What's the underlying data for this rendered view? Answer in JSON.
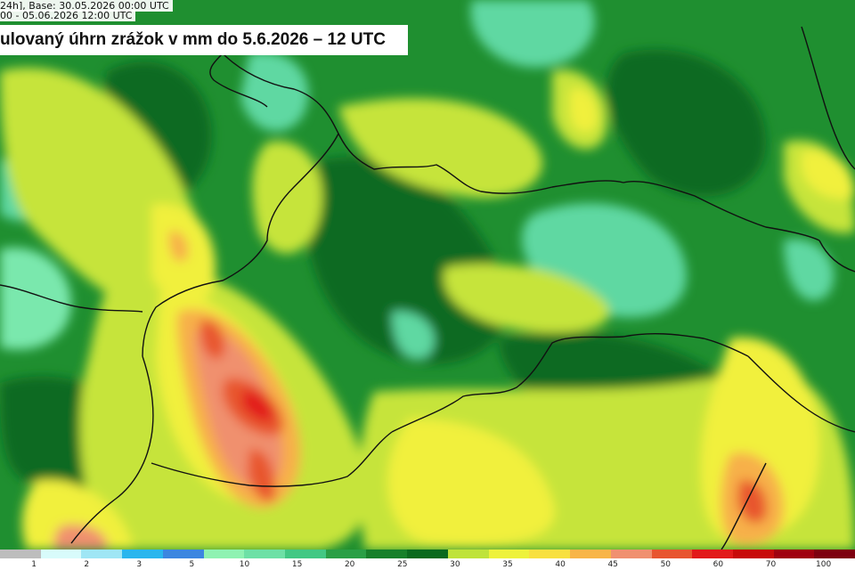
{
  "header": {
    "line1": "24h], Base: 30.05.2026 00:00 UTC",
    "line2": "00 - 05.06.2026 12:00 UTC"
  },
  "title": "ulovaný úhrn zrážok v mm do 5.6.2026 – 12 UTC",
  "legend": {
    "colors": [
      "#bdbdbd",
      "#d8fbfb",
      "#9fe6f5",
      "#2ab6ee",
      "#3c86e0",
      "#8ff2b2",
      "#6ee0a6",
      "#42c884",
      "#2a9f46",
      "#17802a",
      "#0a6a1e",
      "#bfe33a",
      "#eef23c",
      "#f8e040",
      "#f8b548",
      "#f09070",
      "#e85530",
      "#e21a1a",
      "#c80a0a",
      "#a00010",
      "#7e0010"
    ],
    "ticks": [
      {
        "label": "1",
        "at": 1
      },
      {
        "label": "2",
        "at": 2
      },
      {
        "label": "3",
        "at": 3
      },
      {
        "label": "5",
        "at": 4
      },
      {
        "label": "10",
        "at": 5
      },
      {
        "label": "15",
        "at": 6
      },
      {
        "label": "20",
        "at": 7
      },
      {
        "label": "25",
        "at": 8
      },
      {
        "label": "30",
        "at": 9
      },
      {
        "label": "35",
        "at": 10
      },
      {
        "label": "40",
        "at": 11
      },
      {
        "label": "45",
        "at": 12
      },
      {
        "label": "50",
        "at": 13
      },
      {
        "label": "60",
        "at": 14
      },
      {
        "label": "70",
        "at": 15
      },
      {
        "label": "100",
        "at": 16
      }
    ],
    "bins": 16
  }
}
